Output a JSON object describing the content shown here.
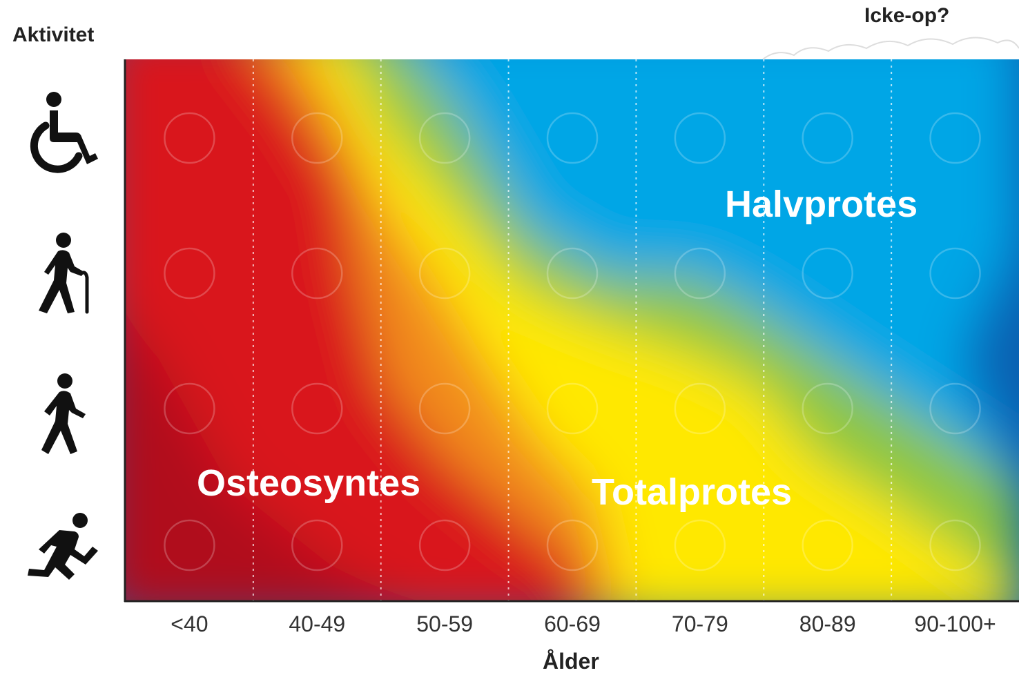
{
  "y_axis_title": "Aktivitet",
  "x_axis_title": "Ålder",
  "top_right_label": "Icke-op?",
  "regions": [
    {
      "id": "osteosyntes",
      "label": "Osteosyntes"
    },
    {
      "id": "totalprotes",
      "label": "Totalprotes"
    },
    {
      "id": "halvprotes",
      "label": "Halvprotes"
    }
  ],
  "activity_levels": [
    {
      "icon": "wheelchair-icon"
    },
    {
      "icon": "walking-cane-icon"
    },
    {
      "icon": "walking-person-icon"
    },
    {
      "icon": "running-person-icon"
    }
  ],
  "colors": {
    "red": "#d9141c",
    "orange": "#f28c1e",
    "yellow": "#ffe800",
    "green": "#8cc63f",
    "cyan": "#00a6e6",
    "blue": "#0a5fb0"
  },
  "chart_data": {
    "type": "heatmap",
    "categories": [
      "<40",
      "40-49",
      "50-59",
      "60-69",
      "70-79",
      "80-89",
      "90-100+"
    ]
  }
}
